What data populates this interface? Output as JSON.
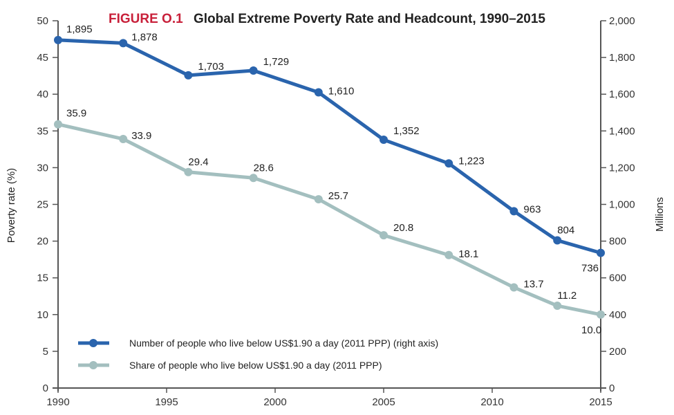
{
  "chart_data": {
    "type": "line",
    "title_prefix": "FIGURE O.1",
    "title": "Global Extreme Poverty Rate and Headcount, 1990–2015",
    "xlabel": "",
    "ylabel_left": "Poverty rate (%)",
    "ylabel_right": "Millions",
    "x": [
      1990,
      1993,
      1996,
      1999,
      2002,
      2005,
      2008,
      2011,
      2013,
      2015
    ],
    "xlim": [
      1990,
      2015
    ],
    "xticks": [
      1990,
      1995,
      2000,
      2005,
      2010,
      2015
    ],
    "xtick_labels": [
      "1990",
      "1995",
      "2000",
      "2005",
      "2010",
      "2015"
    ],
    "ylim_left": [
      0,
      50
    ],
    "yticks_left": [
      0,
      5,
      10,
      15,
      20,
      25,
      30,
      35,
      40,
      45,
      50
    ],
    "ytick_labels_left": [
      "0",
      "5",
      "10",
      "15",
      "20",
      "25",
      "30",
      "35",
      "40",
      "45",
      "50"
    ],
    "ylim_right": [
      0,
      2000
    ],
    "yticks_right": [
      0,
      200,
      400,
      600,
      800,
      1000,
      1200,
      1400,
      1600,
      1800,
      2000
    ],
    "ytick_labels_right": [
      "0",
      "200",
      "400",
      "600",
      "800",
      "1,000",
      "1,200",
      "1,400",
      "1,600",
      "1,800",
      "2,000"
    ],
    "grid": false,
    "legend_position": "bottom-left",
    "series": [
      {
        "name": "Number of people who live below US$1.90 a day (2011 PPP) (right axis)",
        "axis": "right",
        "color": "#2a64ad",
        "values": [
          1895,
          1878,
          1703,
          1729,
          1610,
          1352,
          1223,
          963,
          804,
          736
        ],
        "labels": [
          "1,895",
          "1,878",
          "1,703",
          "1,729",
          "1,610",
          "1,352",
          "1,223",
          "963",
          "804",
          "736"
        ]
      },
      {
        "name": "Share of people who live below US$1.90 a day (2011 PPP)",
        "axis": "left",
        "color": "#a3bfbf",
        "values": [
          35.9,
          33.9,
          29.4,
          28.6,
          25.7,
          20.8,
          18.1,
          13.7,
          11.2,
          10.0
        ],
        "labels": [
          "35.9",
          "33.9",
          "29.4",
          "28.6",
          "25.7",
          "20.8",
          "18.1",
          "13.7",
          "11.2",
          "10.0"
        ]
      }
    ],
    "title_prefix_color": "#c8203a"
  }
}
